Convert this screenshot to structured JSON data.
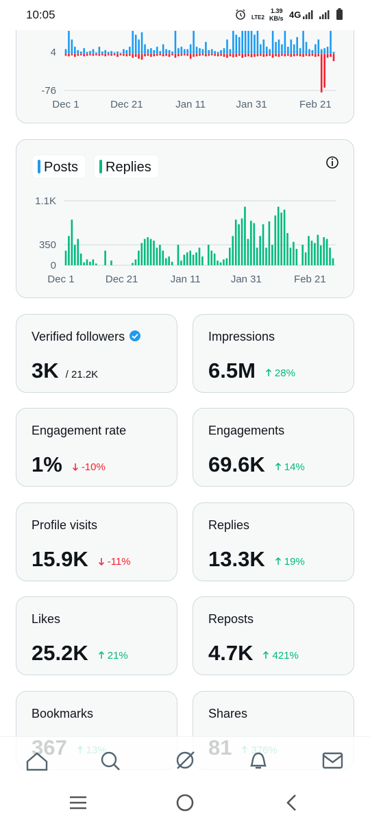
{
  "status_bar": {
    "time": "10:05",
    "carrier": "LTE2",
    "speed": "1.39",
    "speed_unit": "KB/s",
    "network": "4G"
  },
  "chart_data": [
    {
      "type": "bar",
      "ylim": [
        -76,
        48
      ],
      "yticks": [
        4,
        -76
      ],
      "xlim": [
        0,
        88
      ],
      "xticks": [
        {
          "value": 0,
          "label": "Dec 1"
        },
        {
          "value": 20,
          "label": "Dec 21"
        },
        {
          "value": 41,
          "label": "Jan 11"
        },
        {
          "value": 61,
          "label": "Jan 31"
        },
        {
          "value": 82,
          "label": "Feb 21"
        }
      ],
      "series": [
        {
          "color": "#1d9bf0",
          "values": [
            10,
            48,
            30,
            15,
            8,
            5,
            12,
            4,
            6,
            10,
            3,
            15,
            5,
            8,
            4,
            6,
            3,
            5,
            2,
            10,
            8,
            15,
            48,
            40,
            30,
            45,
            20,
            10,
            12,
            8,
            15,
            6,
            20,
            10,
            8,
            5,
            48,
            12,
            15,
            10,
            10,
            20,
            48,
            15,
            12,
            10,
            25,
            8,
            10,
            6,
            4,
            8,
            12,
            30,
            10,
            48,
            40,
            35,
            48,
            48,
            48,
            48,
            40,
            48,
            20,
            30,
            15,
            10,
            48,
            25,
            30,
            20,
            48,
            15,
            30,
            20,
            35,
            12,
            48,
            25,
            10,
            8,
            20,
            30,
            10,
            12,
            15,
            48,
            4
          ]
        },
        {
          "color": "#f4212e",
          "values": [
            -4,
            -5,
            -3,
            -6,
            -4,
            -3,
            -5,
            -4,
            -3,
            -4,
            -3,
            -4,
            -3,
            -5,
            -3,
            -4,
            -3,
            -6,
            -3,
            -4,
            -5,
            -4,
            -8,
            -6,
            -10,
            -12,
            -5,
            -4,
            -6,
            -5,
            -4,
            -3,
            -5,
            -4,
            -6,
            -3,
            -8,
            -5,
            -4,
            -3,
            -4,
            -10,
            -6,
            -5,
            -4,
            -3,
            -5,
            -4,
            -3,
            -4,
            -5,
            -4,
            -6,
            -8,
            -5,
            -7,
            -6,
            -4,
            -8,
            -6,
            -5,
            -7,
            -6,
            -5,
            -4,
            -6,
            -5,
            -4,
            -8,
            -5,
            -6,
            -4,
            -5,
            -4,
            -6,
            -5,
            -4,
            -5,
            -6,
            -4,
            -5,
            -4,
            -6,
            -5,
            -80,
            -70,
            -8,
            -6,
            -15
          ]
        }
      ]
    },
    {
      "type": "bar",
      "ylim": [
        0,
        1100
      ],
      "yticks": [
        0,
        350,
        {
          "value": 1100,
          "label": "1.1K"
        }
      ],
      "xlim": [
        0,
        88
      ],
      "xticks": [
        {
          "value": 0,
          "label": "Dec 1"
        },
        {
          "value": 20,
          "label": "Dec 21"
        },
        {
          "value": 41,
          "label": "Jan 11"
        },
        {
          "value": 61,
          "label": "Jan 31"
        },
        {
          "value": 82,
          "label": "Feb 21"
        }
      ],
      "series": [
        {
          "name": "Posts",
          "color": "#1d9bf0"
        },
        {
          "name": "Replies",
          "color": "#00ba7c",
          "values": [
            250,
            500,
            780,
            350,
            450,
            200,
            50,
            100,
            60,
            100,
            30,
            0,
            0,
            250,
            0,
            80,
            0,
            0,
            0,
            0,
            0,
            0,
            40,
            100,
            250,
            380,
            450,
            480,
            450,
            420,
            300,
            350,
            250,
            120,
            150,
            60,
            0,
            350,
            80,
            180,
            220,
            250,
            180,
            220,
            300,
            150,
            0,
            350,
            250,
            200,
            80,
            50,
            100,
            120,
            300,
            500,
            780,
            700,
            800,
            1000,
            450,
            760,
            720,
            300,
            500,
            700,
            300,
            750,
            350,
            850,
            1000,
            900,
            950,
            550,
            300,
            400,
            280,
            0,
            350,
            220,
            500,
            420,
            380,
            520,
            340,
            480,
            450,
            300,
            120
          ]
        }
      ]
    }
  ],
  "stats": [
    {
      "label": "Verified followers",
      "value": "3K",
      "total": "/ 21.2K",
      "verified": true
    },
    {
      "label": "Impressions",
      "value": "6.5M",
      "change": "28%",
      "trend": "up"
    },
    {
      "label": "Engagement rate",
      "value": "1%",
      "change": "-10%",
      "trend": "down"
    },
    {
      "label": "Engagements",
      "value": "69.6K",
      "change": "14%",
      "trend": "up"
    },
    {
      "label": "Profile visits",
      "value": "15.9K",
      "change": "-11%",
      "trend": "down"
    },
    {
      "label": "Replies",
      "value": "13.3K",
      "change": "19%",
      "trend": "up"
    },
    {
      "label": "Likes",
      "value": "25.2K",
      "change": "21%",
      "trend": "up"
    },
    {
      "label": "Reposts",
      "value": "4.7K",
      "change": "421%",
      "trend": "up"
    },
    {
      "label": "Bookmarks",
      "value": "367",
      "change": "13%",
      "trend": "up"
    },
    {
      "label": "Shares",
      "value": "81",
      "change": "376%",
      "trend": "up"
    }
  ]
}
